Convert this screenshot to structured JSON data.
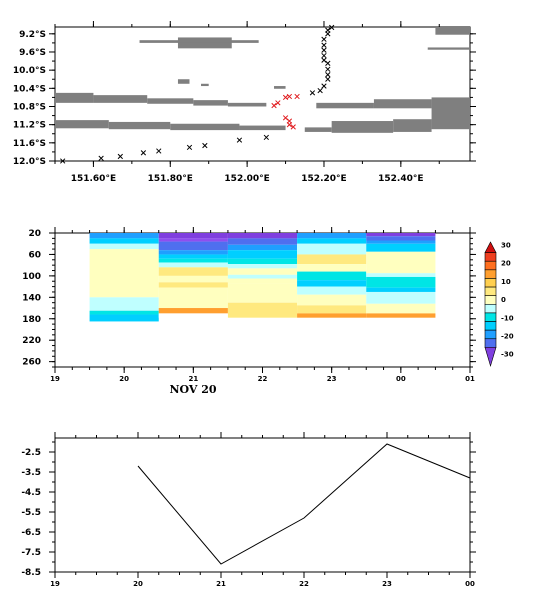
{
  "chart_data": [
    {
      "type": "scatter",
      "description_panel": "track-map",
      "xlabel": "",
      "ylabel": "",
      "xlim": [
        151.5,
        152.58
      ],
      "ylim": [
        -12.0,
        -9.05
      ],
      "xtick_labels": [
        "151.60°E",
        "151.80°E",
        "152.00°E",
        "152.20°E",
        "152.40°E"
      ],
      "xtick_values": [
        151.6,
        151.8,
        152.0,
        152.2,
        152.4
      ],
      "ytick_labels": [
        "9.2°S",
        "9.6°S",
        "10.0°S",
        "10.4°S",
        "10.8°S",
        "11.2°S",
        "11.6°S",
        "12.0°S"
      ],
      "ytick_values": [
        -9.2,
        -9.6,
        -10.0,
        -10.4,
        -10.8,
        -11.2,
        -11.6,
        -12.0
      ],
      "land_bands": [
        {
          "x0": 151.82,
          "x1": 151.96,
          "y0": -9.28,
          "y1": -9.52
        },
        {
          "x0": 151.72,
          "x1": 152.03,
          "y0": -9.34,
          "y1": -9.4
        },
        {
          "x0": 152.49,
          "x1": 152.58,
          "y0": -9.05,
          "y1": -9.22
        },
        {
          "x0": 152.47,
          "x1": 152.58,
          "y0": -9.5,
          "y1": -9.55
        },
        {
          "x0": 151.82,
          "x1": 151.85,
          "y0": -10.2,
          "y1": -10.3
        },
        {
          "x0": 151.88,
          "x1": 151.9,
          "y0": -10.3,
          "y1": -10.35
        },
        {
          "x0": 152.07,
          "x1": 152.1,
          "y0": -10.35,
          "y1": -10.41
        },
        {
          "x0": 151.5,
          "x1": 151.6,
          "y0": -10.5,
          "y1": -10.72
        },
        {
          "x0": 151.6,
          "x1": 151.74,
          "y0": -10.55,
          "y1": -10.72
        },
        {
          "x0": 151.74,
          "x1": 151.86,
          "y0": -10.62,
          "y1": -10.74
        },
        {
          "x0": 151.86,
          "x1": 151.95,
          "y0": -10.66,
          "y1": -10.78
        },
        {
          "x0": 151.95,
          "x1": 152.05,
          "y0": -10.72,
          "y1": -10.8
        },
        {
          "x0": 152.18,
          "x1": 152.33,
          "y0": -10.72,
          "y1": -10.84
        },
        {
          "x0": 152.33,
          "x1": 152.48,
          "y0": -10.64,
          "y1": -10.84
        },
        {
          "x0": 152.48,
          "x1": 152.58,
          "y0": -10.6,
          "y1": -11.3
        },
        {
          "x0": 151.5,
          "x1": 151.64,
          "y0": -11.1,
          "y1": -11.28
        },
        {
          "x0": 151.64,
          "x1": 151.8,
          "y0": -11.14,
          "y1": -11.3
        },
        {
          "x0": 151.8,
          "x1": 151.98,
          "y0": -11.18,
          "y1": -11.32
        },
        {
          "x0": 151.98,
          "x1": 152.1,
          "y0": -11.22,
          "y1": -11.32
        },
        {
          "x0": 152.15,
          "x1": 152.22,
          "y0": -11.26,
          "y1": -11.36
        },
        {
          "x0": 152.22,
          "x1": 152.38,
          "y0": -11.12,
          "y1": -11.38
        },
        {
          "x0": 152.38,
          "x1": 152.48,
          "y0": -11.08,
          "y1": -11.36
        }
      ],
      "track_black": [
        [
          151.52,
          -12.0
        ],
        [
          151.62,
          -11.94
        ],
        [
          151.67,
          -11.9
        ],
        [
          151.73,
          -11.82
        ],
        [
          151.77,
          -11.78
        ],
        [
          151.85,
          -11.7
        ],
        [
          151.89,
          -11.66
        ],
        [
          151.98,
          -11.54
        ],
        [
          152.05,
          -11.48
        ],
        [
          152.17,
          -10.5
        ],
        [
          152.19,
          -10.45
        ],
        [
          152.2,
          -10.35
        ],
        [
          152.21,
          -10.2
        ],
        [
          152.21,
          -10.1
        ],
        [
          152.21,
          -9.98
        ],
        [
          152.21,
          -9.85
        ],
        [
          152.2,
          -9.78
        ],
        [
          152.2,
          -9.68
        ],
        [
          152.2,
          -9.56
        ],
        [
          152.2,
          -9.45
        ],
        [
          152.2,
          -9.32
        ],
        [
          152.21,
          -9.2
        ],
        [
          152.21,
          -9.12
        ],
        [
          152.22,
          -9.06
        ]
      ],
      "track_red": [
        [
          152.07,
          -10.78
        ],
        [
          152.08,
          -10.72
        ],
        [
          152.1,
          -10.6
        ],
        [
          152.11,
          -10.58
        ],
        [
          152.13,
          -10.58
        ],
        [
          152.1,
          -11.05
        ],
        [
          152.11,
          -11.12
        ],
        [
          152.11,
          -11.2
        ],
        [
          152.12,
          -11.25
        ]
      ],
      "colors": {
        "land": "#7f7f7f",
        "black_marker": "#000000",
        "red_marker": "#e0191c"
      }
    },
    {
      "type": "heatmap",
      "description_panel": "depth-time",
      "xlim": [
        19,
        25
      ],
      "ylim": [
        270,
        20
      ],
      "xtick_labels": [
        "19",
        "20",
        "21",
        "22",
        "23",
        "00",
        "01"
      ],
      "ytick_labels": [
        "20",
        "60",
        "100",
        "140",
        "180",
        "220",
        "260"
      ],
      "ytick_values": [
        20,
        60,
        100,
        140,
        180,
        220,
        260
      ],
      "date_label": "NOV 20",
      "colorbar": {
        "labels": [
          "30",
          "20",
          "10",
          "0",
          "-10",
          "-20",
          "-30"
        ],
        "values": [
          30,
          20,
          10,
          0,
          -10,
          -20,
          -30
        ],
        "colors": [
          "#7f3fdf",
          "#4f6fef",
          "#1f9fff",
          "#00cfff",
          "#00e5e5",
          "#bfffff",
          "#ffffbf",
          "#ffe97f",
          "#ffcf4f",
          "#ff9f2f",
          "#ff6f1f",
          "#ef3f1f",
          "#cf0f0f"
        ]
      },
      "columns": [
        {
          "x0": 19.5,
          "x1": 20.5,
          "cells": [
            {
              "d0": 20,
              "d1": 30,
              "color": "#1f9fff"
            },
            {
              "d0": 30,
              "d1": 40,
              "color": "#00cfff"
            },
            {
              "d0": 40,
              "d1": 50,
              "color": "#bfffff"
            },
            {
              "d0": 50,
              "d1": 140,
              "color": "#ffffbf"
            },
            {
              "d0": 140,
              "d1": 165,
              "color": "#bfffff"
            },
            {
              "d0": 165,
              "d1": 172,
              "color": "#00e5e5"
            },
            {
              "d0": 172,
              "d1": 185,
              "color": "#00cfff"
            }
          ]
        },
        {
          "x0": 20.5,
          "x1": 21.5,
          "cells": [
            {
              "d0": 20,
              "d1": 30,
              "color": "#7f3fdf"
            },
            {
              "d0": 30,
              "d1": 36,
              "color": "#8f4fef"
            },
            {
              "d0": 36,
              "d1": 52,
              "color": "#4f6fef"
            },
            {
              "d0": 52,
              "d1": 60,
              "color": "#1f9fff"
            },
            {
              "d0": 60,
              "d1": 68,
              "color": "#00cfff"
            },
            {
              "d0": 68,
              "d1": 75,
              "color": "#00e5e5"
            },
            {
              "d0": 75,
              "d1": 84,
              "color": "#bfffff"
            },
            {
              "d0": 84,
              "d1": 100,
              "color": "#ffe97f"
            },
            {
              "d0": 100,
              "d1": 112,
              "color": "#ffffbf"
            },
            {
              "d0": 112,
              "d1": 122,
              "color": "#ffe97f"
            },
            {
              "d0": 122,
              "d1": 160,
              "color": "#ffffbf"
            },
            {
              "d0": 160,
              "d1": 170,
              "color": "#ff9f2f"
            },
            {
              "d0": 170,
              "d1": 178,
              "color": "#ffffff"
            }
          ]
        },
        {
          "x0": 21.5,
          "x1": 22.5,
          "cells": [
            {
              "d0": 20,
              "d1": 30,
              "color": "#7f3fdf"
            },
            {
              "d0": 30,
              "d1": 42,
              "color": "#4f6fef"
            },
            {
              "d0": 42,
              "d1": 52,
              "color": "#1f9fff"
            },
            {
              "d0": 52,
              "d1": 68,
              "color": "#00cfff"
            },
            {
              "d0": 68,
              "d1": 78,
              "color": "#00e5e5"
            },
            {
              "d0": 78,
              "d1": 86,
              "color": "#bfffff"
            },
            {
              "d0": 86,
              "d1": 98,
              "color": "#ffffbf"
            },
            {
              "d0": 98,
              "d1": 105,
              "color": "#bfffff"
            },
            {
              "d0": 105,
              "d1": 115,
              "color": "#ffffbf"
            },
            {
              "d0": 115,
              "d1": 150,
              "color": "#ffffbf"
            },
            {
              "d0": 150,
              "d1": 178,
              "color": "#ffe97f"
            }
          ]
        },
        {
          "x0": 22.5,
          "x1": 23.5,
          "cells": [
            {
              "d0": 20,
              "d1": 30,
              "color": "#1f9fff"
            },
            {
              "d0": 30,
              "d1": 40,
              "color": "#00cfff"
            },
            {
              "d0": 40,
              "d1": 60,
              "color": "#bfffff"
            },
            {
              "d0": 60,
              "d1": 78,
              "color": "#ffe97f"
            },
            {
              "d0": 78,
              "d1": 92,
              "color": "#ffffbf"
            },
            {
              "d0": 92,
              "d1": 108,
              "color": "#00e5e5"
            },
            {
              "d0": 108,
              "d1": 120,
              "color": "#00cfff"
            },
            {
              "d0": 120,
              "d1": 135,
              "color": "#bfffff"
            },
            {
              "d0": 135,
              "d1": 155,
              "color": "#ffffbf"
            },
            {
              "d0": 155,
              "d1": 170,
              "color": "#ffe97f"
            },
            {
              "d0": 170,
              "d1": 178,
              "color": "#ff9f2f"
            }
          ]
        },
        {
          "x0": 23.5,
          "x1": 24.5,
          "cells": [
            {
              "d0": 20,
              "d1": 26,
              "color": "#7f3fdf"
            },
            {
              "d0": 26,
              "d1": 34,
              "color": "#4f6fef"
            },
            {
              "d0": 34,
              "d1": 40,
              "color": "#1f9fff"
            },
            {
              "d0": 40,
              "d1": 55,
              "color": "#00cfff"
            },
            {
              "d0": 55,
              "d1": 95,
              "color": "#ffffbf"
            },
            {
              "d0": 95,
              "d1": 102,
              "color": "#bfffff"
            },
            {
              "d0": 102,
              "d1": 122,
              "color": "#00e5e5"
            },
            {
              "d0": 122,
              "d1": 130,
              "color": "#00cfff"
            },
            {
              "d0": 130,
              "d1": 152,
              "color": "#bfffff"
            },
            {
              "d0": 152,
              "d1": 170,
              "color": "#ffffbf"
            },
            {
              "d0": 170,
              "d1": 178,
              "color": "#ff9f2f"
            }
          ]
        }
      ]
    },
    {
      "type": "line",
      "description_panel": "time-series",
      "x": [
        20,
        21,
        22,
        23,
        24
      ],
      "y": [
        -3.2,
        -8.1,
        -5.8,
        -2.1,
        -3.8
      ],
      "xlim": [
        19,
        24
      ],
      "ylim": [
        -8.5,
        -1.8
      ],
      "xtick_labels": [
        "19",
        "20",
        "21",
        "22",
        "23",
        "00"
      ],
      "ytick_labels": [
        "-2.5",
        "-3.5",
        "-4.5",
        "-5.5",
        "-6.5",
        "-7.5",
        "-8.5"
      ],
      "ytick_values": [
        -2.5,
        -3.5,
        -4.5,
        -5.5,
        -6.5,
        -7.5,
        -8.5
      ]
    }
  ]
}
